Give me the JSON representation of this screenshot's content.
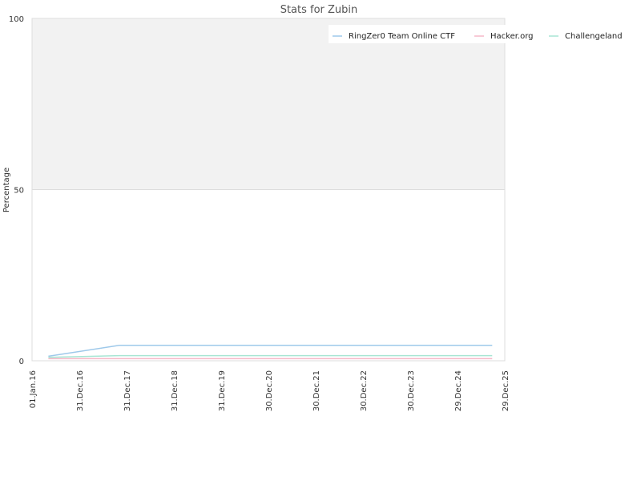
{
  "chart_data": {
    "type": "line",
    "title": "Stats for Zubin",
    "xlabel": "",
    "ylabel": "Percentage",
    "x_tick_labels": [
      "01.Jan.16",
      "31.Dec.16",
      "31.Dec.17",
      "31.Dec.18",
      "31.Dec.19",
      "30.Dec.20",
      "30.Dec.21",
      "30.Dec.22",
      "30.Dec.23",
      "29.Dec.24",
      "29.Dec.25"
    ],
    "y_tick_labels": [
      "0",
      "50",
      "100"
    ],
    "ylim": [
      0,
      100
    ],
    "grid": true,
    "legend_position": "top-right",
    "series": [
      {
        "name": "RingZer0 Team Online CTF",
        "color": "#9ec9ea",
        "x": [
          "2016-05-06",
          "2017-11-05",
          "2025-09-23"
        ],
        "y": [
          1.3,
          4.5,
          4.5
        ]
      },
      {
        "name": "Hacker.org",
        "color": "#f5b8c8",
        "x": [
          "2016-05-06",
          "2025-09-23"
        ],
        "y": [
          0.6,
          0.6
        ]
      },
      {
        "name": "Challengeland",
        "color": "#a8e6d4",
        "x": [
          "2016-05-06",
          "2017-11-05",
          "2025-09-23"
        ],
        "y": [
          1.0,
          1.5,
          1.5
        ]
      }
    ]
  }
}
